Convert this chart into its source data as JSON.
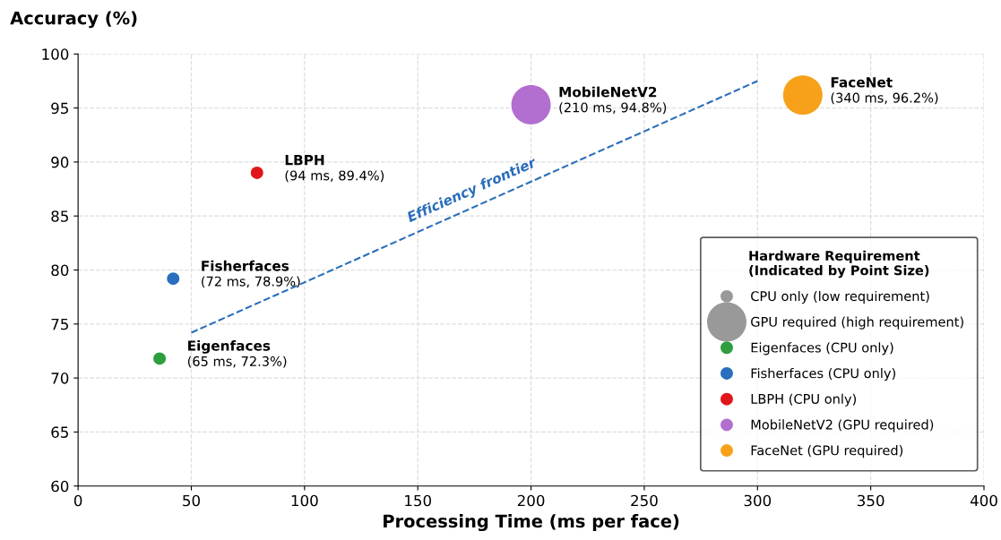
{
  "chart_data": {
    "type": "bubble",
    "xlabel": "Processing Time (ms per face)",
    "ylabel": "Accuracy (%)",
    "xlim": [
      0,
      400
    ],
    "xticks": [
      0,
      50,
      100,
      150,
      200,
      250,
      300,
      350,
      400
    ],
    "ylim": [
      60,
      100
    ],
    "yticks": [
      60,
      65,
      70,
      75,
      80,
      85,
      90,
      95,
      100
    ],
    "grid": true,
    "legend": "bottom right",
    "legend_title": "Hardware Requirement\n(Indicated by Point Size)",
    "size_legend": [
      {
        "value": 0.1,
        "label": "CPU only (low requirement)"
      },
      {
        "value": 1,
        "label": "GPU required (high requirement)"
      }
    ],
    "series": [
      {
        "name": "Eigenfaces (CPU only)",
        "color": "#2e9e3e",
        "x": [
          36
        ],
        "values": [
          71.8
        ],
        "sizes": [
          0.1
        ]
      },
      {
        "name": "Fisherfaces (CPU only)",
        "color": "#2a6ebf",
        "x": [
          42
        ],
        "values": [
          79.2
        ],
        "sizes": [
          0.1
        ]
      },
      {
        "name": "LBPH (CPU only)",
        "color": "#e0161b",
        "x": [
          79
        ],
        "values": [
          89.0
        ],
        "sizes": [
          0.1
        ]
      },
      {
        "name": "MobileNetV2 (GPU required)",
        "color": "#b26fcf",
        "x": [
          200
        ],
        "values": [
          95.3
        ],
        "sizes": [
          1
        ]
      },
      {
        "name": "FaceNet (GPU required)",
        "color": "#f7a11a",
        "x": [
          320
        ],
        "values": [
          96.2
        ],
        "sizes": [
          1
        ]
      },
      {
        "name": "Efficiency frontier",
        "type": "line",
        "color": "#2a6ebb",
        "line_style": "dashed",
        "x": [
          50,
          300
        ],
        "values": [
          74.2,
          97.5
        ]
      }
    ],
    "annotations": [
      {
        "text": "Eigenfaces\n(65 ms, 72.3%)",
        "x": 36,
        "y": 71.8
      },
      {
        "text": "Fisherfaces\n(72 ms, 78.9%)",
        "x": 42,
        "y": 79.2
      },
      {
        "text": "LBPH\n(94 ms, 89.4%)",
        "x": 79,
        "y": 89.0
      },
      {
        "text": "MobileNetV2\n(210 ms, 94.8%)",
        "x": 200,
        "y": 95.3
      },
      {
        "text": "FaceNet\n(340 ms, 96.2%)",
        "x": 320,
        "y": 96.2
      }
    ]
  }
}
